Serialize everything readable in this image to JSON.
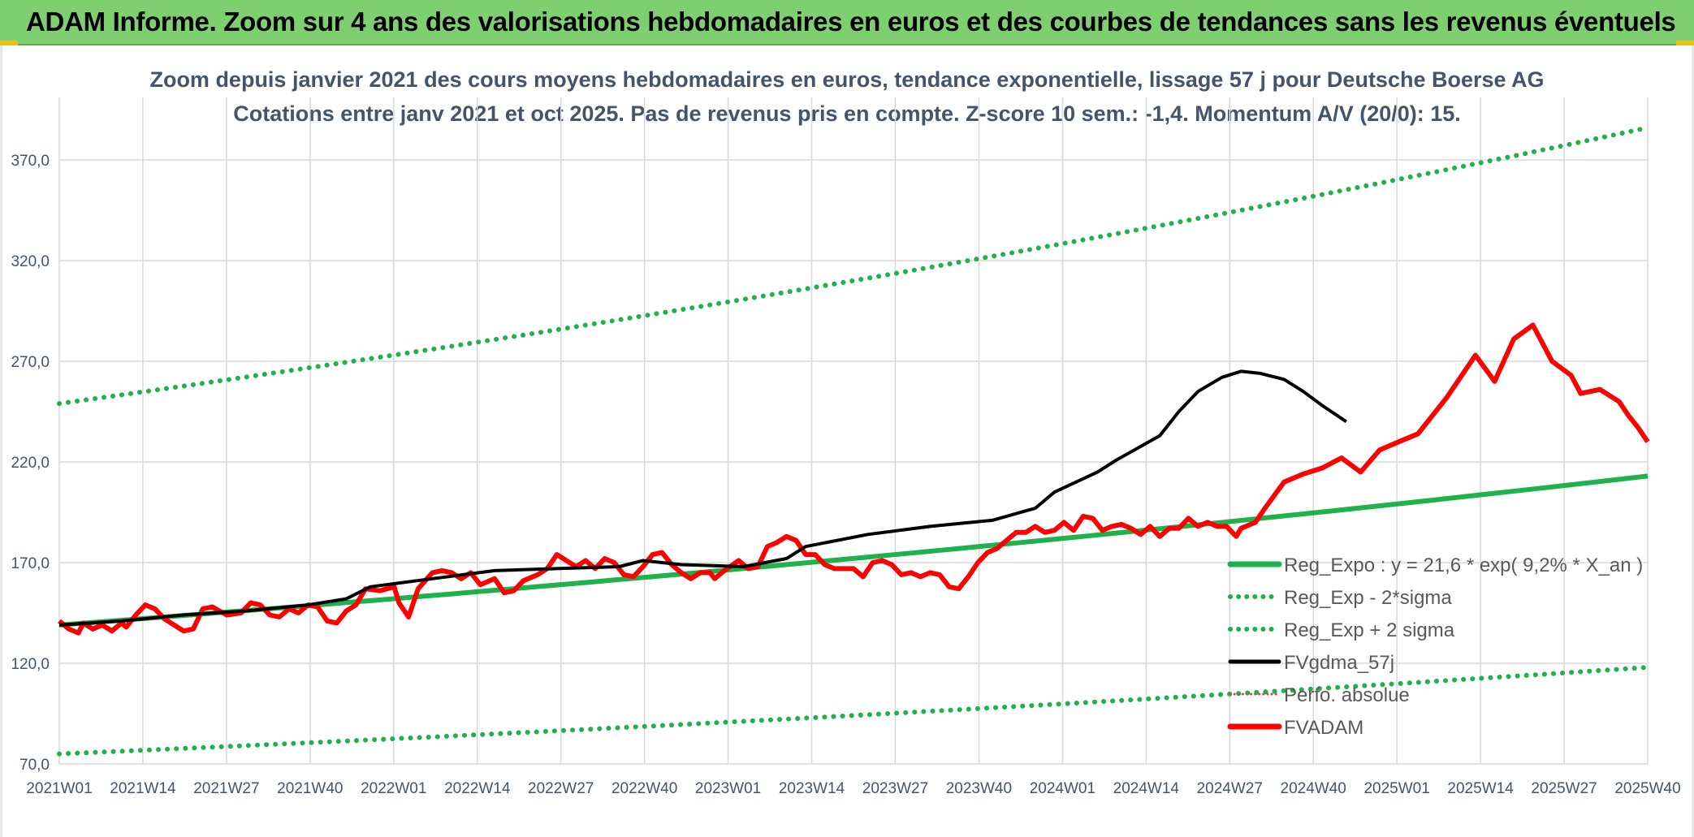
{
  "banner": {
    "title": "ADAM Informe. Zoom sur 4 ans des valorisations hebdomadaires en euros et des courbes de tendances sans les revenus éventuels"
  },
  "colors": {
    "banner_bg": "#7ecf6f",
    "reg_expo": "#1fb14b",
    "sigma_bands": "#1fb14b",
    "fvgdma": "#000000",
    "perfo": "#c0504d",
    "fvadam": "#ff0000",
    "grid": "#d9d9d9",
    "text": "#44546a"
  },
  "chart_data": {
    "type": "line",
    "title_line1": "Zoom depuis janvier 2021 des cours moyens hebdomadaires en euros, tendance exponentielle, lissage 57 j pour Deutsche Boerse AG",
    "title_line2": "Cotations entre janv 2021 et oct 2025. Pas de revenus pris en compte. Z-score 10 sem.: -1,4. Momentum A/V (20/0): 15.",
    "xlabel": "",
    "ylabel": "",
    "ylim": [
      70,
      390
    ],
    "y_ticks": [
      "70,0",
      "120,0",
      "170,0",
      "220,0",
      "270,0",
      "320,0",
      "370,0"
    ],
    "y_tick_values": [
      70,
      120,
      170,
      220,
      270,
      320,
      370
    ],
    "x_ticks": [
      "2021W01",
      "2021W14",
      "2021W27",
      "2021W40",
      "2022W01",
      "2022W14",
      "2022W27",
      "2022W40",
      "2023W01",
      "2023W14",
      "2023W27",
      "2023W40",
      "2024W01",
      "2024W14",
      "2024W27",
      "2024W40",
      "2025W01",
      "2025W14",
      "2025W27",
      "2025W40"
    ],
    "x_range_weeks": [
      0,
      247
    ],
    "grid": true,
    "legend_position": "bottom-right",
    "legend": [
      {
        "key": "reg_expo",
        "label": "Reg_Expo : y = 21,6 * exp( 9,2% *  X_an )",
        "style": "solid"
      },
      {
        "key": "reg_minus",
        "label": "Reg_Exp - 2*sigma",
        "style": "dotted"
      },
      {
        "key": "reg_plus",
        "label": "Reg_Exp + 2 sigma",
        "style": "dotted"
      },
      {
        "key": "fvgdma",
        "label": "FVgdma_57j",
        "style": "solid"
      },
      {
        "key": "perfo",
        "label": "Perfo. absolue",
        "style": "dotted"
      },
      {
        "key": "fvadam",
        "label": "FVADAM",
        "style": "solid"
      }
    ],
    "series": [
      {
        "key": "reg_expo",
        "start": 139,
        "end": 213
      },
      {
        "key": "reg_minus",
        "start": 75,
        "end": 118
      },
      {
        "key": "reg_plus",
        "start": 249,
        "end": 386
      },
      {
        "key": "fvgdma",
        "points": [
          [
            0,
            139
          ],
          [
            13,
            141
          ],
          [
            26,
            144
          ],
          [
            39,
            146
          ],
          [
            52,
            149
          ],
          [
            60,
            152
          ],
          [
            65,
            158
          ],
          [
            78,
            162
          ],
          [
            91,
            166
          ],
          [
            104,
            167
          ],
          [
            117,
            168
          ],
          [
            122,
            171
          ],
          [
            130,
            169
          ],
          [
            143,
            168
          ],
          [
            152,
            172
          ],
          [
            156,
            178
          ],
          [
            169,
            184
          ],
          [
            182,
            188
          ],
          [
            195,
            191
          ],
          [
            204,
            197
          ],
          [
            208,
            205
          ],
          [
            217,
            215
          ],
          [
            221,
            221
          ],
          [
            230,
            233
          ],
          [
            234,
            245
          ],
          [
            238,
            255
          ],
          [
            243,
            262
          ],
          [
            247,
            265
          ],
          [
            251,
            264
          ],
          [
            256,
            261
          ],
          [
            260,
            255
          ],
          [
            264,
            248
          ],
          [
            269,
            240
          ]
        ]
      },
      {
        "key": "fvadam",
        "points": [
          [
            0,
            141
          ],
          [
            2,
            137
          ],
          [
            4,
            135
          ],
          [
            5,
            140
          ],
          [
            7,
            137
          ],
          [
            9,
            139
          ],
          [
            11,
            136
          ],
          [
            13,
            140
          ],
          [
            14,
            138
          ],
          [
            16,
            144
          ],
          [
            18,
            149
          ],
          [
            20,
            147
          ],
          [
            22,
            142
          ],
          [
            24,
            139
          ],
          [
            26,
            136
          ],
          [
            28,
            137
          ],
          [
            30,
            147
          ],
          [
            32,
            148
          ],
          [
            35,
            144
          ],
          [
            38,
            145
          ],
          [
            40,
            150
          ],
          [
            42,
            149
          ],
          [
            44,
            144
          ],
          [
            46,
            143
          ],
          [
            48,
            147
          ],
          [
            50,
            145
          ],
          [
            52,
            149
          ],
          [
            54,
            148
          ],
          [
            56,
            141
          ],
          [
            58,
            140
          ],
          [
            60,
            146
          ],
          [
            62,
            149
          ],
          [
            64,
            157
          ],
          [
            67,
            156
          ],
          [
            70,
            158
          ],
          [
            71,
            150
          ],
          [
            73,
            143
          ],
          [
            75,
            157
          ],
          [
            78,
            165
          ],
          [
            80,
            166
          ],
          [
            82,
            165
          ],
          [
            84,
            162
          ],
          [
            86,
            165
          ],
          [
            88,
            159
          ],
          [
            91,
            162
          ],
          [
            93,
            155
          ],
          [
            95,
            156
          ],
          [
            97,
            161
          ],
          [
            100,
            164
          ],
          [
            102,
            167
          ],
          [
            104,
            174
          ],
          [
            106,
            171
          ],
          [
            108,
            168
          ],
          [
            110,
            171
          ],
          [
            112,
            167
          ],
          [
            114,
            172
          ],
          [
            116,
            170
          ],
          [
            118,
            164
          ],
          [
            120,
            163
          ],
          [
            122,
            168
          ],
          [
            124,
            174
          ],
          [
            126,
            175
          ],
          [
            128,
            169
          ],
          [
            130,
            165
          ],
          [
            132,
            162
          ],
          [
            134,
            165
          ],
          [
            136,
            165
          ],
          [
            137,
            162
          ],
          [
            139,
            166
          ],
          [
            142,
            171
          ],
          [
            144,
            167
          ],
          [
            146,
            168
          ],
          [
            148,
            178
          ],
          [
            150,
            180
          ],
          [
            152,
            183
          ],
          [
            154,
            181
          ],
          [
            156,
            174
          ],
          [
            158,
            174
          ],
          [
            160,
            169
          ],
          [
            162,
            167
          ],
          [
            164,
            167
          ],
          [
            166,
            167
          ],
          [
            168,
            163
          ],
          [
            170,
            170
          ],
          [
            172,
            171
          ],
          [
            174,
            169
          ],
          [
            176,
            164
          ],
          [
            178,
            165
          ],
          [
            180,
            163
          ],
          [
            182,
            165
          ],
          [
            184,
            164
          ],
          [
            186,
            158
          ],
          [
            188,
            157
          ],
          [
            190,
            163
          ],
          [
            192,
            170
          ],
          [
            194,
            175
          ],
          [
            196,
            177
          ],
          [
            198,
            181
          ],
          [
            200,
            185
          ],
          [
            202,
            185
          ],
          [
            204,
            188
          ],
          [
            206,
            185
          ],
          [
            208,
            186
          ],
          [
            210,
            190
          ],
          [
            212,
            186
          ],
          [
            214,
            193
          ],
          [
            216,
            192
          ],
          [
            218,
            186
          ],
          [
            220,
            188
          ],
          [
            222,
            189
          ],
          [
            224,
            187
          ],
          [
            226,
            184
          ],
          [
            228,
            188
          ],
          [
            230,
            183
          ],
          [
            232,
            187
          ],
          [
            234,
            187
          ],
          [
            236,
            192
          ],
          [
            238,
            188
          ],
          [
            240,
            190
          ],
          [
            242,
            188
          ],
          [
            244,
            188
          ],
          [
            246,
            183
          ],
          [
            247,
            187
          ],
          [
            250,
            190
          ],
          [
            252,
            197
          ],
          [
            256,
            210
          ],
          [
            260,
            214
          ],
          [
            264,
            217
          ],
          [
            268,
            222
          ],
          [
            272,
            215
          ],
          [
            276,
            226
          ],
          [
            280,
            230
          ],
          [
            284,
            234
          ],
          [
            290,
            252
          ],
          [
            296,
            273
          ],
          [
            300,
            260
          ],
          [
            304,
            281
          ],
          [
            308,
            288
          ],
          [
            312,
            270
          ],
          [
            316,
            263
          ],
          [
            318,
            254
          ],
          [
            322,
            256
          ],
          [
            326,
            250
          ],
          [
            328,
            243
          ],
          [
            330,
            237
          ],
          [
            332,
            230
          ]
        ]
      }
    ]
  }
}
